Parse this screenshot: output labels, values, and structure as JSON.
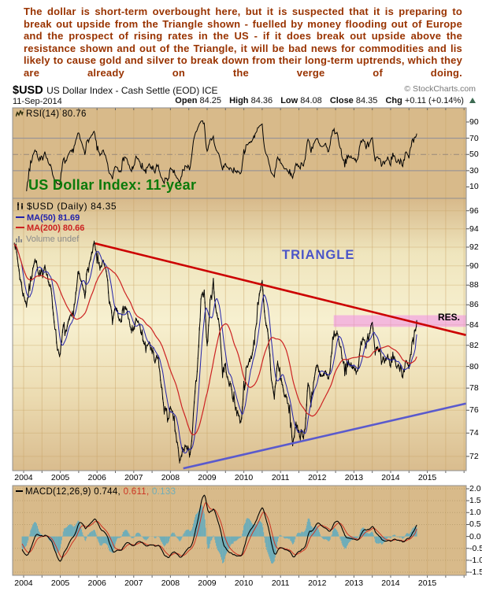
{
  "commentary": "The dollar is short-term overbought here, but it is suspected that it is preparing to break out upside from the Triangle shown - fuelled by money flooding out of Europe and the prospect of rising rates in the US - if it does break out upside above the resistance shown and out of the Triangle, it will be bad news for commodities and lis likely to cause gold and silver to break down from their long-term uptrends, which they are already on the verge of doing.",
  "header": {
    "symbol": "$USD",
    "title": "US Dollar Index - Cash Settle (EOD) ICE",
    "copyright": "© StockCharts.com",
    "date": "11-Sep-2014"
  },
  "quote": {
    "open_label": "Open",
    "open": "84.25",
    "high_label": "High",
    "high": "84.36",
    "low_label": "Low",
    "low": "84.08",
    "close_label": "Close",
    "close": "84.35",
    "chg_label": "Chg",
    "chg": "+0.11 (+0.14%)"
  },
  "legends": {
    "rsi": "RSI(14) 80.76",
    "price_main": "$USD (Daily) 84.35",
    "ma50": "MA(50) 81.69",
    "ma200": "MA(200) 80.66",
    "volume": "Volume undef",
    "macd_main": "MACD(12,26,9) 0.744,",
    "macd_signal": "0.611,",
    "macd_hist": "0.133"
  },
  "annotations": {
    "chart_note": "US Dollar Index: 11-year",
    "triangle_label": "TRIANGLE",
    "res_label": "RES."
  },
  "colors": {
    "panel_tan": "#d8ba8a",
    "panel_cream": "#f7f0d0",
    "grid": "#c8a263",
    "border": "#8f8f8f",
    "price": "#000000",
    "ma50": "#2222aa",
    "ma200": "#cc2222",
    "rsi_line": "#000000",
    "macd_line": "#000000",
    "macd_signal": "#cc3322",
    "macd_hist": "#6fadb8",
    "trend_upper": "#cc0000",
    "trend_lower": "#5a5acd",
    "resistance_band": "rgba(240,140,230,0.55)"
  },
  "chart_data": [
    {
      "id": "rsi",
      "type": "line",
      "title": "RSI(14)",
      "last_value": 80.76,
      "ylim": [
        0,
        100
      ],
      "yticks": [
        90,
        70,
        50,
        30,
        10
      ],
      "overbought_line": 70,
      "oversold_line": 30,
      "midline": 50,
      "derived_from": "price series below, RSI period 14"
    },
    {
      "id": "price",
      "type": "line",
      "title": "$USD Daily close, Oct-2003 to Sep-2014",
      "scale": "log",
      "yticks": [
        96,
        94,
        92,
        90,
        88,
        86,
        84,
        82,
        80,
        78,
        76,
        74,
        72
      ],
      "x_years": [
        2004,
        2005,
        2006,
        2007,
        2008,
        2009,
        2010,
        2011,
        2012,
        2013,
        2014,
        2015
      ],
      "series": [
        {
          "name": "$USD",
          "last": 84.35,
          "points": [
            [
              2003.75,
              92.8
            ],
            [
              2003.83,
              90.8
            ],
            [
              2003.92,
              88.4
            ],
            [
              2004.0,
              86.9
            ],
            [
              2004.08,
              86.1
            ],
            [
              2004.17,
              87.9
            ],
            [
              2004.25,
              89.9
            ],
            [
              2004.33,
              90.7
            ],
            [
              2004.42,
              88.7
            ],
            [
              2004.5,
              89.1
            ],
            [
              2004.58,
              90.1
            ],
            [
              2004.67,
              88.5
            ],
            [
              2004.75,
              87.3
            ],
            [
              2004.83,
              84.6
            ],
            [
              2004.92,
              81.7
            ],
            [
              2005.0,
              81.0
            ],
            [
              2005.08,
              83.7
            ],
            [
              2005.17,
              83.3
            ],
            [
              2005.25,
              84.6
            ],
            [
              2005.33,
              84.9
            ],
            [
              2005.42,
              86.9
            ],
            [
              2005.5,
              89.3
            ],
            [
              2005.58,
              88.1
            ],
            [
              2005.67,
              87.4
            ],
            [
              2005.75,
              89.6
            ],
            [
              2005.83,
              90.7
            ],
            [
              2005.92,
              92.4
            ],
            [
              2006.0,
              90.8
            ],
            [
              2006.08,
              89.9
            ],
            [
              2006.17,
              90.4
            ],
            [
              2006.25,
              89.3
            ],
            [
              2006.33,
              86.6
            ],
            [
              2006.42,
              84.3
            ],
            [
              2006.5,
              85.9
            ],
            [
              2006.58,
              85.2
            ],
            [
              2006.67,
              84.8
            ],
            [
              2006.75,
              85.9
            ],
            [
              2006.83,
              85.3
            ],
            [
              2006.92,
              83.2
            ],
            [
              2007.0,
              83.6
            ],
            [
              2007.08,
              84.7
            ],
            [
              2007.17,
              83.6
            ],
            [
              2007.25,
              82.8
            ],
            [
              2007.33,
              81.5
            ],
            [
              2007.42,
              82.4
            ],
            [
              2007.5,
              81.2
            ],
            [
              2007.58,
              80.4
            ],
            [
              2007.67,
              80.8
            ],
            [
              2007.75,
              78.1
            ],
            [
              2007.83,
              76.3
            ],
            [
              2007.92,
              75.2
            ],
            [
              2008.0,
              76.1
            ],
            [
              2008.08,
              75.5
            ],
            [
              2008.17,
              73.4
            ],
            [
              2008.25,
              71.4
            ],
            [
              2008.33,
              72.5
            ],
            [
              2008.42,
              72.9
            ],
            [
              2008.5,
              72.1
            ],
            [
              2008.58,
              73.3
            ],
            [
              2008.67,
              77.6
            ],
            [
              2008.75,
              80.2
            ],
            [
              2008.83,
              86.2
            ],
            [
              2008.92,
              87.6
            ],
            [
              2009.0,
              81.6
            ],
            [
              2009.08,
              86.1
            ],
            [
              2009.17,
              88.3
            ],
            [
              2009.25,
              85.1
            ],
            [
              2009.33,
              84.4
            ],
            [
              2009.42,
              79.4
            ],
            [
              2009.5,
              80.1
            ],
            [
              2009.58,
              78.4
            ],
            [
              2009.67,
              78.1
            ],
            [
              2009.75,
              76.5
            ],
            [
              2009.83,
              75.9
            ],
            [
              2009.92,
              74.8
            ],
            [
              2010.0,
              78.1
            ],
            [
              2010.08,
              79.7
            ],
            [
              2010.17,
              80.7
            ],
            [
              2010.25,
              81.3
            ],
            [
              2010.33,
              84.0
            ],
            [
              2010.42,
              87.2
            ],
            [
              2010.5,
              88.2
            ],
            [
              2010.58,
              84.2
            ],
            [
              2010.67,
              82.9
            ],
            [
              2010.75,
              78.9
            ],
            [
              2010.83,
              77.1
            ],
            [
              2010.92,
              80.4
            ],
            [
              2011.0,
              79.1
            ],
            [
              2011.08,
              77.7
            ],
            [
              2011.17,
              76.9
            ],
            [
              2011.25,
              75.8
            ],
            [
              2011.33,
              73.1
            ],
            [
              2011.42,
              74.6
            ],
            [
              2011.5,
              74.2
            ],
            [
              2011.58,
              73.9
            ],
            [
              2011.67,
              74.3
            ],
            [
              2011.75,
              78.6
            ],
            [
              2011.83,
              76.9
            ],
            [
              2011.92,
              78.9
            ],
            [
              2012.0,
              80.1
            ],
            [
              2012.08,
              79.1
            ],
            [
              2012.17,
              78.9
            ],
            [
              2012.25,
              79.2
            ],
            [
              2012.33,
              79.0
            ],
            [
              2012.42,
              82.4
            ],
            [
              2012.5,
              83.4
            ],
            [
              2012.58,
              82.7
            ],
            [
              2012.67,
              81.2
            ],
            [
              2012.75,
              79.9
            ],
            [
              2012.83,
              80.0
            ],
            [
              2012.92,
              80.2
            ],
            [
              2013.0,
              79.7
            ],
            [
              2013.08,
              79.4
            ],
            [
              2013.17,
              81.8
            ],
            [
              2013.25,
              82.9
            ],
            [
              2013.33,
              81.7
            ],
            [
              2013.42,
              83.4
            ],
            [
              2013.5,
              84.4
            ],
            [
              2013.58,
              81.5
            ],
            [
              2013.67,
              82.1
            ],
            [
              2013.75,
              80.2
            ],
            [
              2013.83,
              80.4
            ],
            [
              2013.92,
              80.7
            ],
            [
              2014.0,
              80.2
            ],
            [
              2014.08,
              81.1
            ],
            [
              2014.17,
              79.9
            ],
            [
              2014.25,
              80.1
            ],
            [
              2014.33,
              79.5
            ],
            [
              2014.42,
              80.4
            ],
            [
              2014.5,
              79.8
            ],
            [
              2014.58,
              81.7
            ],
            [
              2014.67,
              83.2
            ],
            [
              2014.71,
              84.35
            ]
          ]
        },
        {
          "name": "MA(50)",
          "last": 81.69,
          "derived": "50-day moving average of $USD"
        },
        {
          "name": "MA(200)",
          "last": 80.66,
          "derived": "200-day moving average of $USD"
        }
      ],
      "annotations": {
        "upper_trendline": {
          "t1": 2005.95,
          "p1": 92.4,
          "t2": 2016.05,
          "p2": 83.0
        },
        "lower_trendline": {
          "t1": 2008.35,
          "p1": 71.0,
          "t2": 2016.05,
          "p2": 76.6
        },
        "resistance_band": {
          "t1": 2012.45,
          "t2": 2016.05,
          "p_top": 84.95,
          "p_bottom": 83.8
        }
      }
    },
    {
      "id": "macd",
      "type": "line+histogram",
      "title": "MACD(12,26,9)",
      "last_values": {
        "macd": 0.744,
        "signal": 0.611,
        "histogram": 0.133
      },
      "yticks": [
        "2.0",
        "1.5",
        "1.0",
        "0.5",
        "0.0",
        "-0.5",
        "-1.0",
        "-1.5"
      ],
      "ytick_values": [
        2.0,
        1.5,
        1.0,
        0.5,
        0.0,
        -0.5,
        -1.0,
        -1.5
      ],
      "derived_from": "price series above: EMA12-EMA26, signal EMA9"
    }
  ]
}
